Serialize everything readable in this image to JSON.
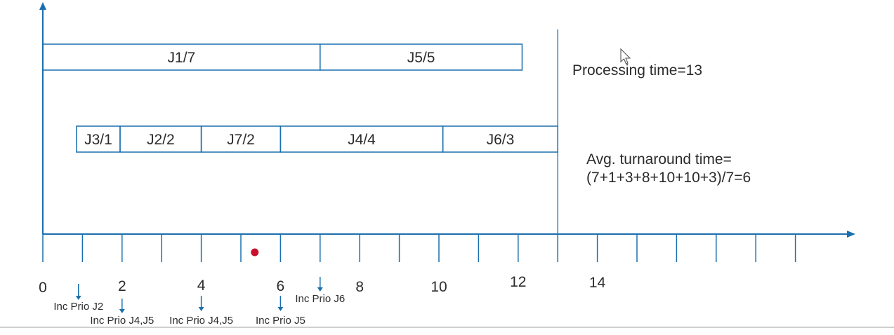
{
  "colors": {
    "axis": "#1a6fae",
    "job_box_stroke": "#1a6fae",
    "job_text": "#2b2b2b",
    "label_text": "#2b2b2b",
    "marker_dot": "#c8102e",
    "bottom_rule": "#cfcfcf"
  },
  "tick_labels": [
    "0",
    "2",
    "4",
    "6",
    "8",
    "10",
    "12",
    "14"
  ],
  "tick_values": [
    0,
    2,
    4,
    6,
    8,
    10,
    12,
    14
  ],
  "tick_count": 20,
  "rows": [
    {
      "jobs": [
        {
          "label": "J1/7",
          "start": 0,
          "end": 7
        },
        {
          "label": "J5/5",
          "start": 7,
          "end": 12.1
        }
      ]
    },
    {
      "jobs": [
        {
          "label": "J3/1",
          "start": 0.85,
          "end": 1.95
        },
        {
          "label": "J2/2",
          "start": 1.95,
          "end": 4
        },
        {
          "label": "J7/2",
          "start": 4,
          "end": 6
        },
        {
          "label": "J4/4",
          "start": 6,
          "end": 10.1
        },
        {
          "label": "J6/3",
          "start": 10.1,
          "end": 13
        }
      ]
    }
  ],
  "end_marker": 13,
  "marker_dot_time": 5.35,
  "events": [
    {
      "label": "Inc Prio J2",
      "time": 0.9
    },
    {
      "label": "Inc Prio J4,J5",
      "time": 2
    },
    {
      "label": "Inc Prio J4,J5",
      "time": 4
    },
    {
      "label": "Inc Prio J5",
      "time": 6
    },
    {
      "label": "Inc Prio J6",
      "time": 7
    }
  ],
  "processing_time_text": "Processing time=13",
  "turnaround_line1": "Avg. turnaround time=",
  "turnaround_line2": "(7+1+3+8+10+10+3)/7=6"
}
